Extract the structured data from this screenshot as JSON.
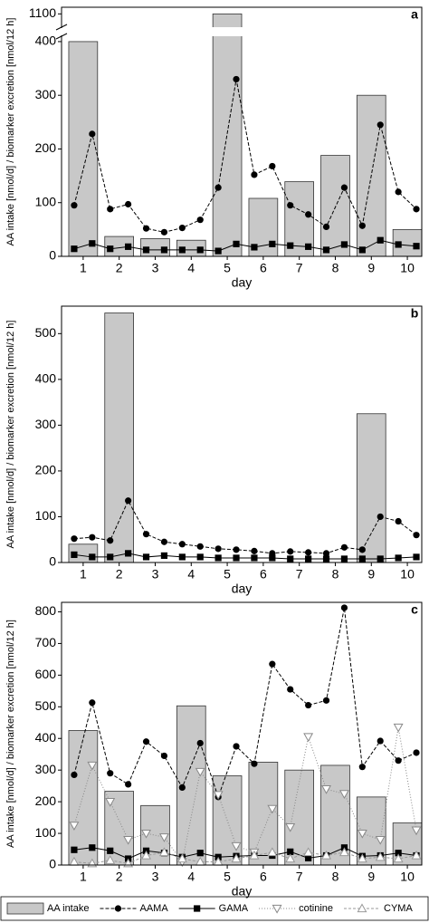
{
  "chart_data": [
    {
      "type": "combo",
      "panel": "a",
      "xlabel": "day",
      "ylabel": "AA intake [nmol/d] / biomarker excretion [nmol/12 h]",
      "xlim": [
        0.4,
        10.4
      ],
      "xticks": [
        1,
        2,
        3,
        4,
        5,
        6,
        7,
        8,
        9,
        10
      ],
      "ylim": [
        0,
        1110
      ],
      "ybreak": [
        410,
        1080
      ],
      "yticks": [
        0,
        100,
        200,
        300,
        400,
        1100
      ],
      "series": [
        {
          "kind": "bar",
          "color": "#c8c8c8",
          "x": [
            1,
            2,
            3,
            4,
            5,
            6,
            7,
            8,
            9,
            10
          ],
          "values": [
            400,
            37,
            33,
            30,
            1100,
            108,
            139,
            188,
            300,
            50
          ]
        },
        {
          "kind": "line",
          "marker": "circle",
          "dash": "4 2",
          "color": "#000000",
          "x": [
            0.75,
            1.25,
            1.75,
            2.25,
            2.75,
            3.25,
            3.75,
            4.25,
            4.75,
            5.25,
            5.75,
            6.25,
            6.75,
            7.25,
            7.75,
            8.25,
            8.75,
            9.25,
            9.75,
            10.25
          ],
          "values": [
            95,
            228,
            88,
            97,
            52,
            45,
            53,
            68,
            128,
            330,
            152,
            168,
            95,
            78,
            55,
            128,
            57,
            245,
            120,
            88
          ]
        },
        {
          "kind": "line",
          "marker": "square",
          "dash": "none",
          "color": "#000000",
          "x": [
            0.75,
            1.25,
            1.75,
            2.25,
            2.75,
            3.25,
            3.75,
            4.25,
            4.75,
            5.25,
            5.75,
            6.25,
            6.75,
            7.25,
            7.75,
            8.25,
            8.75,
            9.25,
            9.75,
            10.25
          ],
          "values": [
            14,
            24,
            14,
            18,
            12,
            12,
            12,
            12,
            10,
            23,
            17,
            23,
            20,
            18,
            12,
            22,
            12,
            30,
            22,
            19
          ]
        }
      ]
    },
    {
      "type": "combo",
      "panel": "b",
      "xlabel": "day",
      "ylabel": "AA intake [nmol/d] / biomarker excretion [nmol/12 h]",
      "xlim": [
        0.4,
        10.4
      ],
      "xticks": [
        1,
        2,
        3,
        4,
        5,
        6,
        7,
        8,
        9,
        10
      ],
      "ylim": [
        0,
        560
      ],
      "yticks": [
        0,
        100,
        200,
        300,
        400,
        500
      ],
      "series": [
        {
          "kind": "bar",
          "color": "#c8c8c8",
          "x": [
            1,
            2,
            3,
            4,
            5,
            6,
            7,
            8,
            9,
            10
          ],
          "values": [
            40,
            545,
            null,
            null,
            null,
            null,
            null,
            null,
            325,
            null
          ]
        },
        {
          "kind": "line",
          "marker": "circle",
          "dash": "4 2",
          "color": "#000000",
          "x": [
            0.75,
            1.25,
            1.75,
            2.25,
            2.75,
            3.25,
            3.75,
            4.25,
            4.75,
            5.25,
            5.75,
            6.25,
            6.75,
            7.25,
            7.75,
            8.25,
            8.75,
            9.25,
            9.75,
            10.25
          ],
          "values": [
            52,
            55,
            48,
            135,
            62,
            45,
            40,
            35,
            30,
            28,
            25,
            20,
            24,
            22,
            20,
            33,
            28,
            100,
            90,
            60
          ]
        },
        {
          "kind": "line",
          "marker": "square",
          "dash": "none",
          "color": "#000000",
          "x": [
            0.75,
            1.25,
            1.75,
            2.25,
            2.75,
            3.25,
            3.75,
            4.25,
            4.75,
            5.25,
            5.75,
            6.25,
            6.75,
            7.25,
            7.75,
            8.25,
            8.75,
            9.25,
            9.75,
            10.25
          ],
          "values": [
            17,
            12,
            12,
            20,
            12,
            15,
            12,
            12,
            10,
            10,
            10,
            10,
            8,
            8,
            8,
            8,
            8,
            8,
            10,
            12
          ]
        }
      ]
    },
    {
      "type": "combo",
      "panel": "c",
      "xlabel": "day",
      "ylabel": "AA intake [nmol/d] / biomarker excretion [nmol/12 h]",
      "xlim": [
        0.4,
        10.4
      ],
      "xticks": [
        1,
        2,
        3,
        4,
        5,
        6,
        7,
        8,
        9,
        10
      ],
      "ylim": [
        0,
        830
      ],
      "yticks": [
        0,
        100,
        200,
        300,
        400,
        500,
        600,
        700,
        800
      ],
      "series": [
        {
          "name": "AA intake",
          "kind": "bar",
          "color": "#c8c8c8",
          "x": [
            1,
            2,
            3,
            4,
            5,
            6,
            7,
            8,
            9,
            10
          ],
          "values": [
            425,
            233,
            188,
            503,
            282,
            325,
            300,
            315,
            215,
            133
          ]
        },
        {
          "name": "AAMA",
          "kind": "line",
          "marker": "circle",
          "dash": "4 2",
          "color": "#000000",
          "x": [
            0.75,
            1.25,
            1.75,
            2.25,
            2.75,
            3.25,
            3.75,
            4.25,
            4.75,
            5.25,
            5.75,
            6.25,
            6.75,
            7.25,
            7.75,
            8.25,
            8.75,
            9.25,
            9.75,
            10.25
          ],
          "values": [
            285,
            513,
            290,
            255,
            390,
            345,
            245,
            385,
            215,
            375,
            320,
            635,
            555,
            505,
            520,
            813,
            310,
            392,
            330,
            355
          ]
        },
        {
          "name": "GAMA",
          "kind": "line",
          "marker": "square",
          "dash": "none",
          "color": "#000000",
          "x": [
            0.75,
            1.25,
            1.75,
            2.25,
            2.75,
            3.25,
            3.75,
            4.25,
            4.75,
            5.25,
            5.75,
            6.25,
            6.75,
            7.25,
            7.75,
            8.25,
            8.75,
            9.25,
            9.75,
            10.25
          ],
          "values": [
            48,
            55,
            45,
            20,
            45,
            38,
            25,
            38,
            25,
            28,
            30,
            30,
            42,
            22,
            30,
            55,
            28,
            30,
            38,
            30
          ]
        },
        {
          "name": "cotinine",
          "kind": "line",
          "marker": "triangle-down",
          "dash": "1 2",
          "color": "#888888",
          "x": [
            0.75,
            1.25,
            1.75,
            2.25,
            2.75,
            3.25,
            3.75,
            4.25,
            4.75,
            5.25,
            5.75,
            6.25,
            6.75,
            7.25,
            7.75,
            8.25,
            8.75,
            9.25,
            9.75,
            10.25
          ],
          "values": [
            125,
            315,
            200,
            80,
            100,
            88,
            10,
            295,
            222,
            60,
            40,
            178,
            120,
            405,
            240,
            225,
            100,
            80,
            435,
            110
          ]
        },
        {
          "name": "CYMA",
          "kind": "line",
          "marker": "triangle-up",
          "dash": "3 2",
          "color": "#999999",
          "x": [
            0.75,
            1.25,
            1.75,
            2.25,
            2.75,
            3.25,
            3.75,
            4.25,
            4.75,
            5.25,
            5.75,
            6.25,
            6.75,
            7.25,
            7.75,
            8.25,
            8.75,
            9.25,
            9.75,
            10.25
          ],
          "values": [
            10,
            5,
            15,
            5,
            30,
            40,
            20,
            10,
            10,
            20,
            30,
            40,
            20,
            40,
            30,
            40,
            20,
            25,
            20,
            30
          ]
        }
      ]
    }
  ]
}
